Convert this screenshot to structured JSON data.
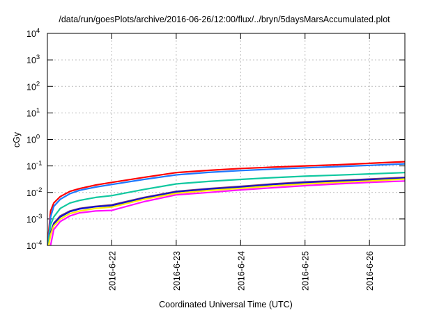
{
  "chart_data": {
    "type": "line",
    "title": "/data/run/goesPlots/archive/2016-06-26/12:00/flux/../bryn/5daysMarsAccumulated.plot",
    "xlabel": "Coordinated Universal Time (UTC)",
    "ylabel": "cGy",
    "yscale": "log",
    "ylim": [
      0.0001,
      10000
    ],
    "xlim_days_since_2016_06_21": [
      0,
      5.55
    ],
    "grid": true,
    "y_ticks": [
      {
        "value": 0.0001,
        "base": "10",
        "exp": "-4"
      },
      {
        "value": 0.001,
        "base": "10",
        "exp": "-3"
      },
      {
        "value": 0.01,
        "base": "10",
        "exp": "-2"
      },
      {
        "value": 0.1,
        "base": "10",
        "exp": "-1"
      },
      {
        "value": 1,
        "base": "10",
        "exp": "0"
      },
      {
        "value": 10,
        "base": "10",
        "exp": "1"
      },
      {
        "value": 100,
        "base": "10",
        "exp": "2"
      },
      {
        "value": 1000,
        "base": "10",
        "exp": "3"
      },
      {
        "value": 10000,
        "base": "10",
        "exp": "4"
      }
    ],
    "x_ticks": [
      {
        "value": 1,
        "label": "2016-6-22"
      },
      {
        "value": 2,
        "label": "2016-6-23"
      },
      {
        "value": 3,
        "label": "2016-6-24"
      },
      {
        "value": 4,
        "label": "2016-6-25"
      },
      {
        "value": 5,
        "label": "2016-6-26"
      }
    ],
    "x": [
      0.02,
      0.05,
      0.1,
      0.2,
      0.35,
      0.5,
      0.75,
      1,
      1.5,
      2,
      2.5,
      3,
      3.5,
      4,
      4.5,
      5,
      5.55
    ],
    "series": [
      {
        "name": "red",
        "color": "#ff0000",
        "values": [
          0.0003,
          0.002,
          0.004,
          0.007,
          0.011,
          0.014,
          0.019,
          0.024,
          0.037,
          0.056,
          0.068,
          0.08,
          0.09,
          0.1,
          0.11,
          0.125,
          0.145
        ]
      },
      {
        "name": "blue",
        "color": "#1e78ff",
        "values": [
          0.0002,
          0.0012,
          0.003,
          0.0055,
          0.009,
          0.012,
          0.016,
          0.02,
          0.031,
          0.046,
          0.057,
          0.067,
          0.076,
          0.085,
          0.094,
          0.105,
          0.12
        ]
      },
      {
        "name": "teal",
        "color": "#10c8a0",
        "values": [
          0.00015,
          0.0006,
          0.0012,
          0.0025,
          0.004,
          0.005,
          0.0065,
          0.0076,
          0.013,
          0.021,
          0.026,
          0.031,
          0.036,
          0.041,
          0.045,
          0.05,
          0.056
        ]
      },
      {
        "name": "purple",
        "color": "#7a3a78",
        "values": [
          0.0001,
          0.0003,
          0.0007,
          0.0013,
          0.002,
          0.0025,
          0.003,
          0.0034,
          0.0065,
          0.011,
          0.014,
          0.017,
          0.021,
          0.025,
          0.028,
          0.032,
          0.037
        ]
      },
      {
        "name": "navy",
        "color": "#1010d0",
        "values": [
          0.0001,
          0.00028,
          0.00065,
          0.0012,
          0.0019,
          0.0024,
          0.0029,
          0.0032,
          0.0062,
          0.0105,
          0.0133,
          0.016,
          0.02,
          0.0235,
          0.0265,
          0.03,
          0.035
        ]
      },
      {
        "name": "yellow",
        "color": "#ffee00",
        "values": [
          0.0001,
          0.00025,
          0.00055,
          0.001,
          0.0016,
          0.002,
          0.0025,
          0.0028,
          0.0055,
          0.0093,
          0.0118,
          0.0143,
          0.0177,
          0.021,
          0.024,
          0.027,
          0.032
        ]
      },
      {
        "name": "magenta",
        "color": "#ff10ff",
        "values": [
          5e-05,
          0.0001,
          0.0004,
          0.0008,
          0.0013,
          0.0017,
          0.002,
          0.0021,
          0.0045,
          0.0081,
          0.01,
          0.0125,
          0.015,
          0.018,
          0.021,
          0.024,
          0.027
        ]
      }
    ]
  }
}
